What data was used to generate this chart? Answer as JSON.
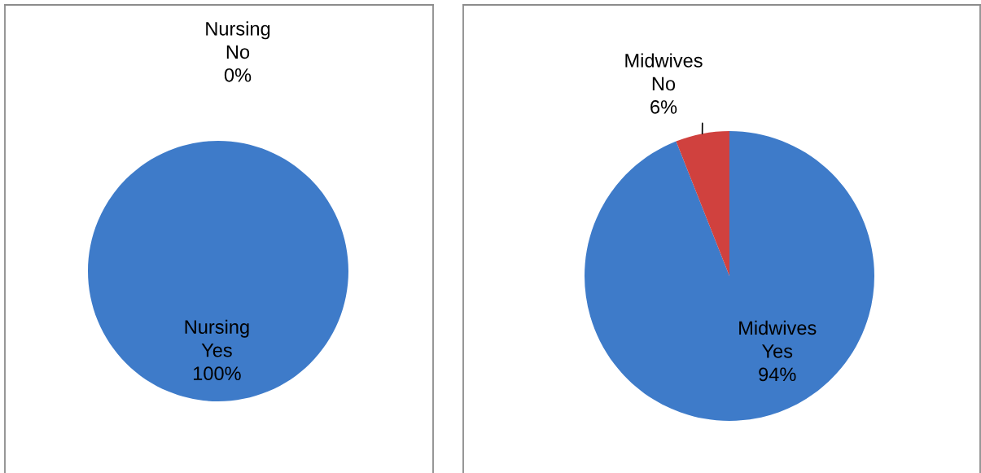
{
  "chart_data": [
    {
      "type": "pie",
      "categories": [
        "Yes",
        "No"
      ],
      "colors": [
        "#3e7bc9",
        null
      ],
      "series": [
        {
          "name": "Nursing",
          "values": [
            100,
            0
          ],
          "value_labels": [
            "100%",
            "0%"
          ]
        }
      ]
    },
    {
      "type": "pie",
      "categories": [
        "Yes",
        "No"
      ],
      "colors": [
        "#3e7bc9",
        "#d0413e"
      ],
      "series": [
        {
          "name": "Midwives",
          "values": [
            94,
            6
          ],
          "value_labels": [
            "94%",
            "6%"
          ]
        }
      ]
    }
  ]
}
